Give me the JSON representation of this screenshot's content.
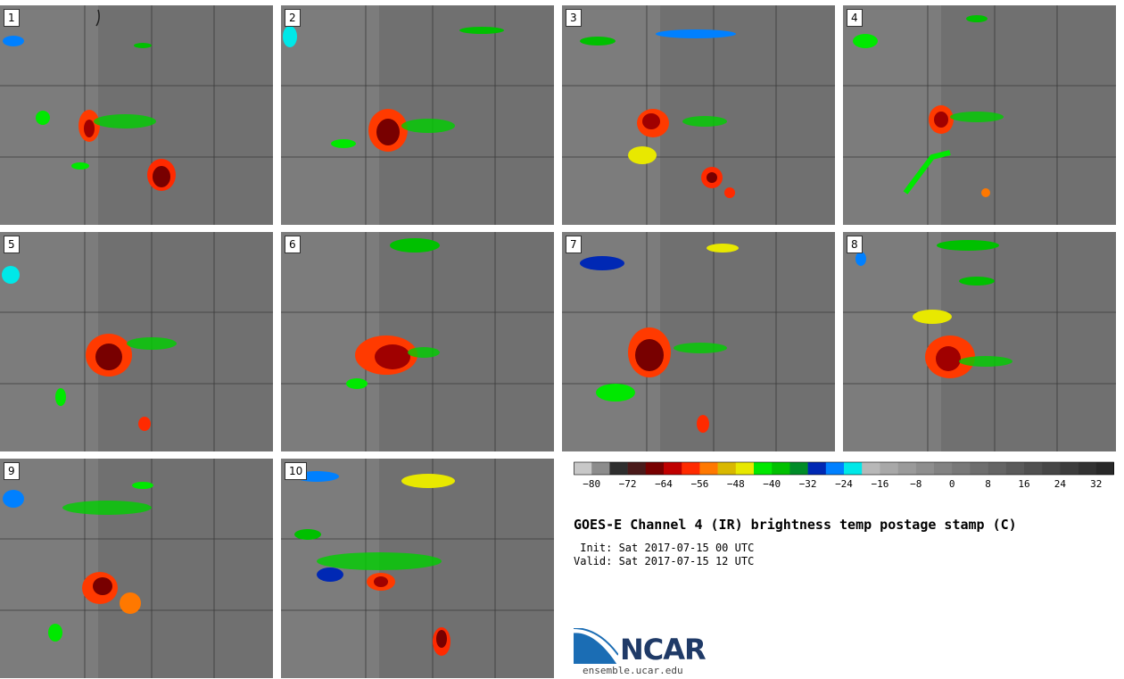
{
  "panels": [
    {
      "label": "1"
    },
    {
      "label": "2"
    },
    {
      "label": "3"
    },
    {
      "label": "4"
    },
    {
      "label": "5"
    },
    {
      "label": "6"
    },
    {
      "label": "7"
    },
    {
      "label": "8"
    },
    {
      "label": "9"
    },
    {
      "label": "10"
    }
  ],
  "colorbar": {
    "ticks": [
      "−80",
      "−72",
      "−64",
      "−56",
      "−48",
      "−40",
      "−32",
      "−24",
      "−16",
      "−8",
      "0",
      "8",
      "16",
      "24",
      "32"
    ],
    "colors": [
      "#c8c8c8",
      "#8c8c8c",
      "#2e2e2e",
      "#4a1a1a",
      "#780000",
      "#c00000",
      "#ff2a00",
      "#ff7800",
      "#d9b800",
      "#e8e800",
      "#00e800",
      "#00c000",
      "#008c28",
      "#0028b4",
      "#0080ff",
      "#00e8e8",
      "#b8b8b8",
      "#a8a8a8",
      "#9a9a9a",
      "#8e8e8e",
      "#828282",
      "#787878",
      "#6e6e6e",
      "#646464",
      "#5a5a5a",
      "#505050",
      "#464646",
      "#3c3c3c",
      "#323232",
      "#282828"
    ]
  },
  "title": "GOES-E Channel 4 (IR) brightness temp postage stamp (C)",
  "init_line": " Init: Sat 2017-07-15 00 UTC",
  "valid_line": "Valid: Sat 2017-07-15 12 UTC",
  "logo": {
    "text": "NCAR",
    "url": "ensemble.ucar.edu"
  }
}
